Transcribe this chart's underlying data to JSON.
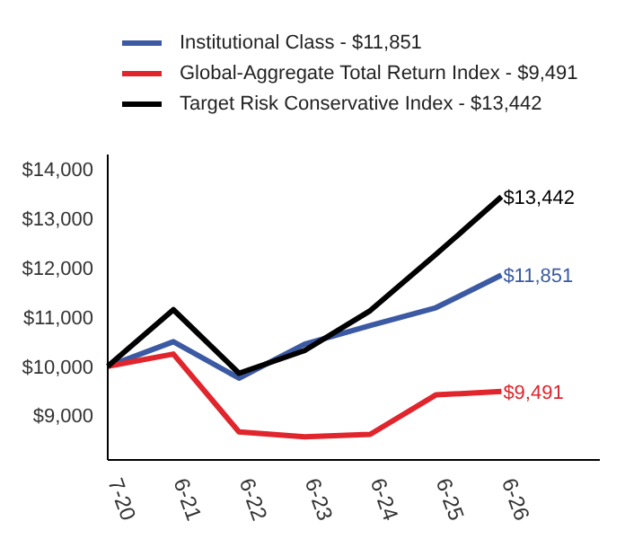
{
  "chart_data": {
    "type": "line",
    "categories": [
      "7-20",
      "6-21",
      "6-22",
      "6-23",
      "6-24",
      "6-25",
      "6-26"
    ],
    "ylim": [
      8100,
      14300
    ],
    "yticks": [
      {
        "value": 9000,
        "label": "$9,000"
      },
      {
        "value": 10000,
        "label": "$10,000"
      },
      {
        "value": 11000,
        "label": "$11,000"
      },
      {
        "value": 12000,
        "label": "$12,000"
      },
      {
        "value": 13000,
        "label": "$13,000"
      },
      {
        "value": 14000,
        "label": "$14,000"
      }
    ],
    "series": [
      {
        "name": "Institutional Class - $11,851",
        "color": "#3b5aa3",
        "values": [
          10000,
          10500,
          9760,
          10450,
          10830,
          11190,
          11851
        ],
        "value_labels": [
          null,
          null,
          null,
          null,
          null,
          null,
          "$11,851"
        ]
      },
      {
        "name": "Global-Aggregate Total Return Index - $9,491",
        "color": "#e0252c",
        "values": [
          10000,
          10250,
          8670,
          8570,
          8620,
          9420,
          9491
        ],
        "value_labels": [
          null,
          null,
          null,
          null,
          null,
          null,
          "$9,491"
        ]
      },
      {
        "name": "Target Risk Conservative Index - $13,442",
        "color": "#000000",
        "values": [
          10000,
          11150,
          9860,
          10320,
          11130,
          12270,
          13442
        ],
        "value_labels": [
          null,
          null,
          null,
          null,
          null,
          null,
          "$13,442"
        ]
      }
    ],
    "grid": false,
    "legend": "top",
    "marker": "none",
    "line_style": "solid"
  }
}
